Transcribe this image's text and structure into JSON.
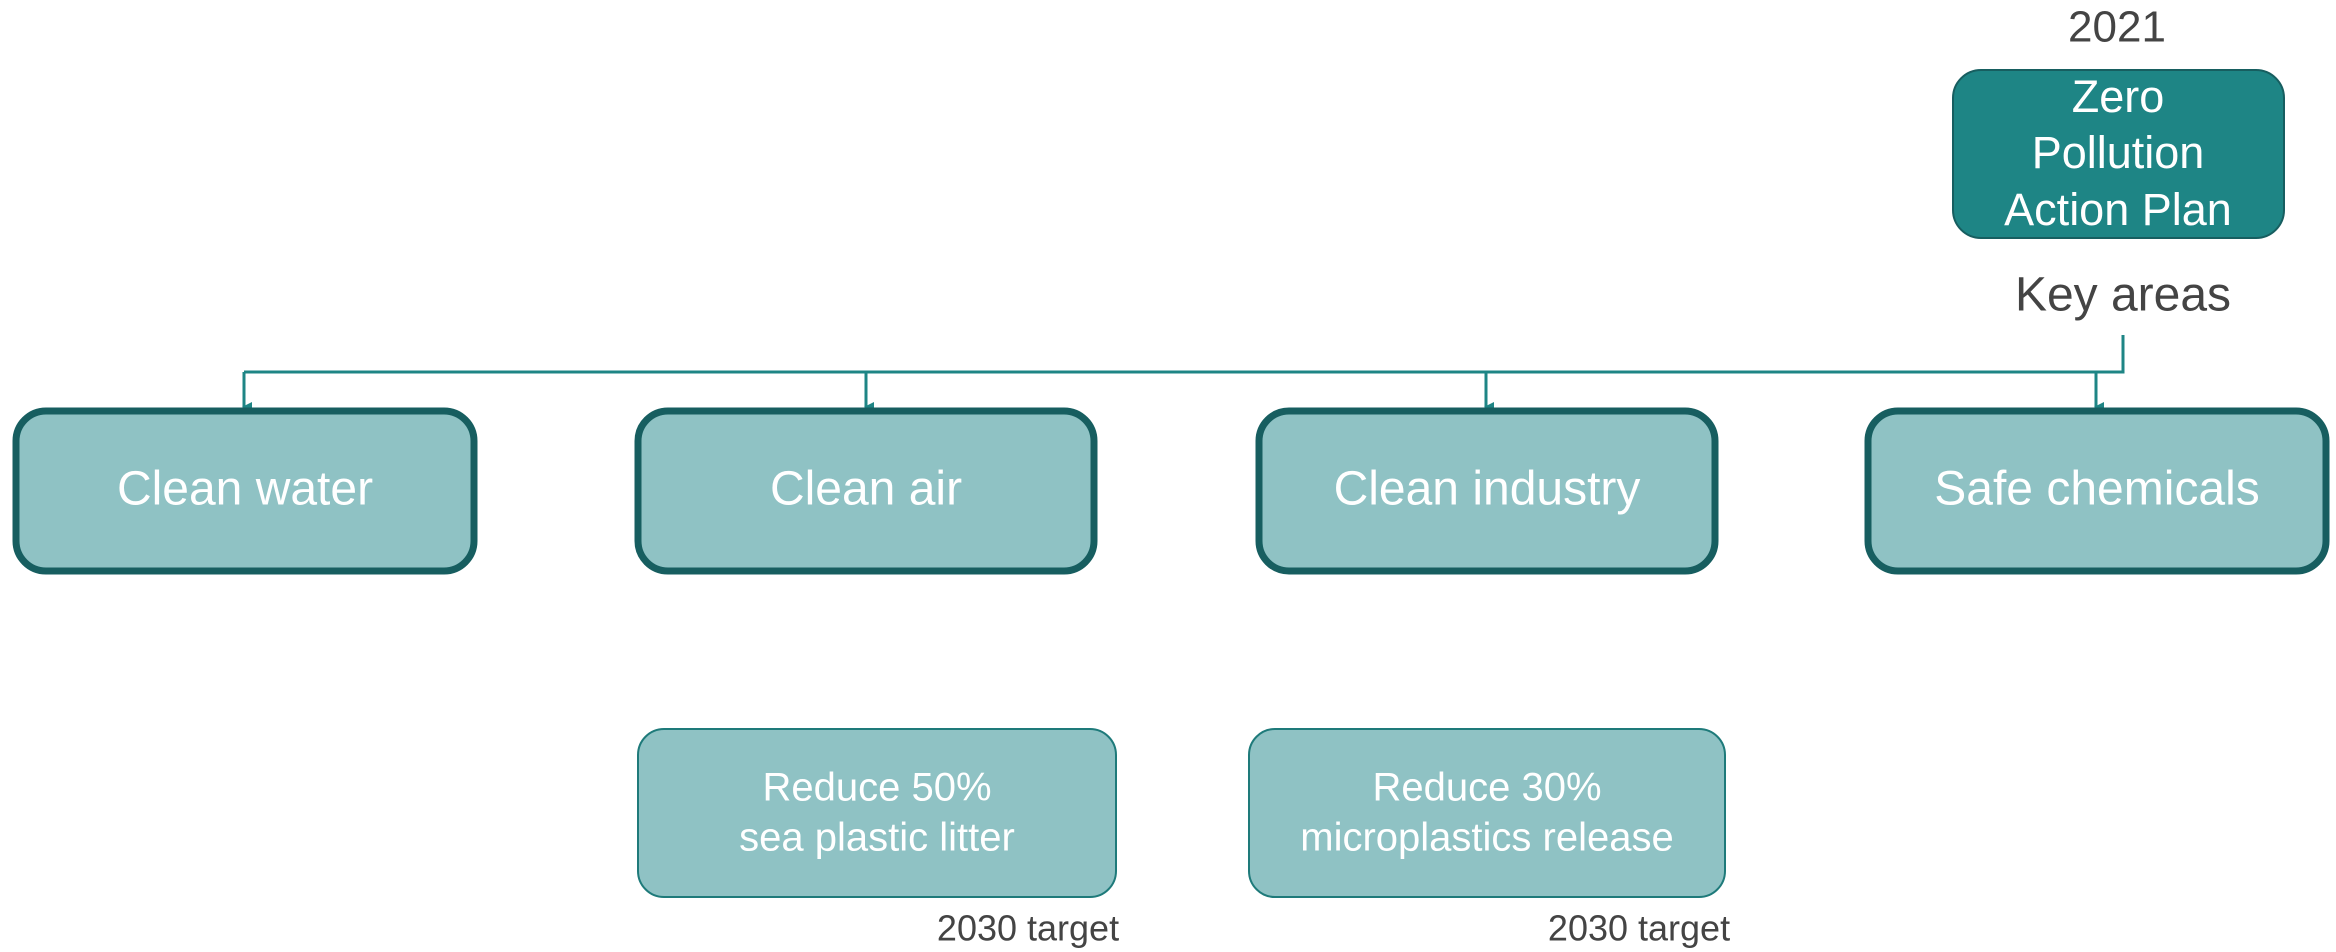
{
  "year": "2021",
  "root": {
    "lines": [
      "Zero",
      "Pollution",
      "Action Plan"
    ]
  },
  "root_caption": "Key areas",
  "areas": [
    "Clean water",
    "Clean air",
    "Clean industry",
    "Safe chemicals"
  ],
  "targets": [
    {
      "lines": [
        "Reduce 50%",
        "sea plastic litter"
      ],
      "note": "2030 target"
    },
    {
      "lines": [
        "Reduce 30%",
        "microplastics release"
      ],
      "note": "2030 target"
    }
  ]
}
